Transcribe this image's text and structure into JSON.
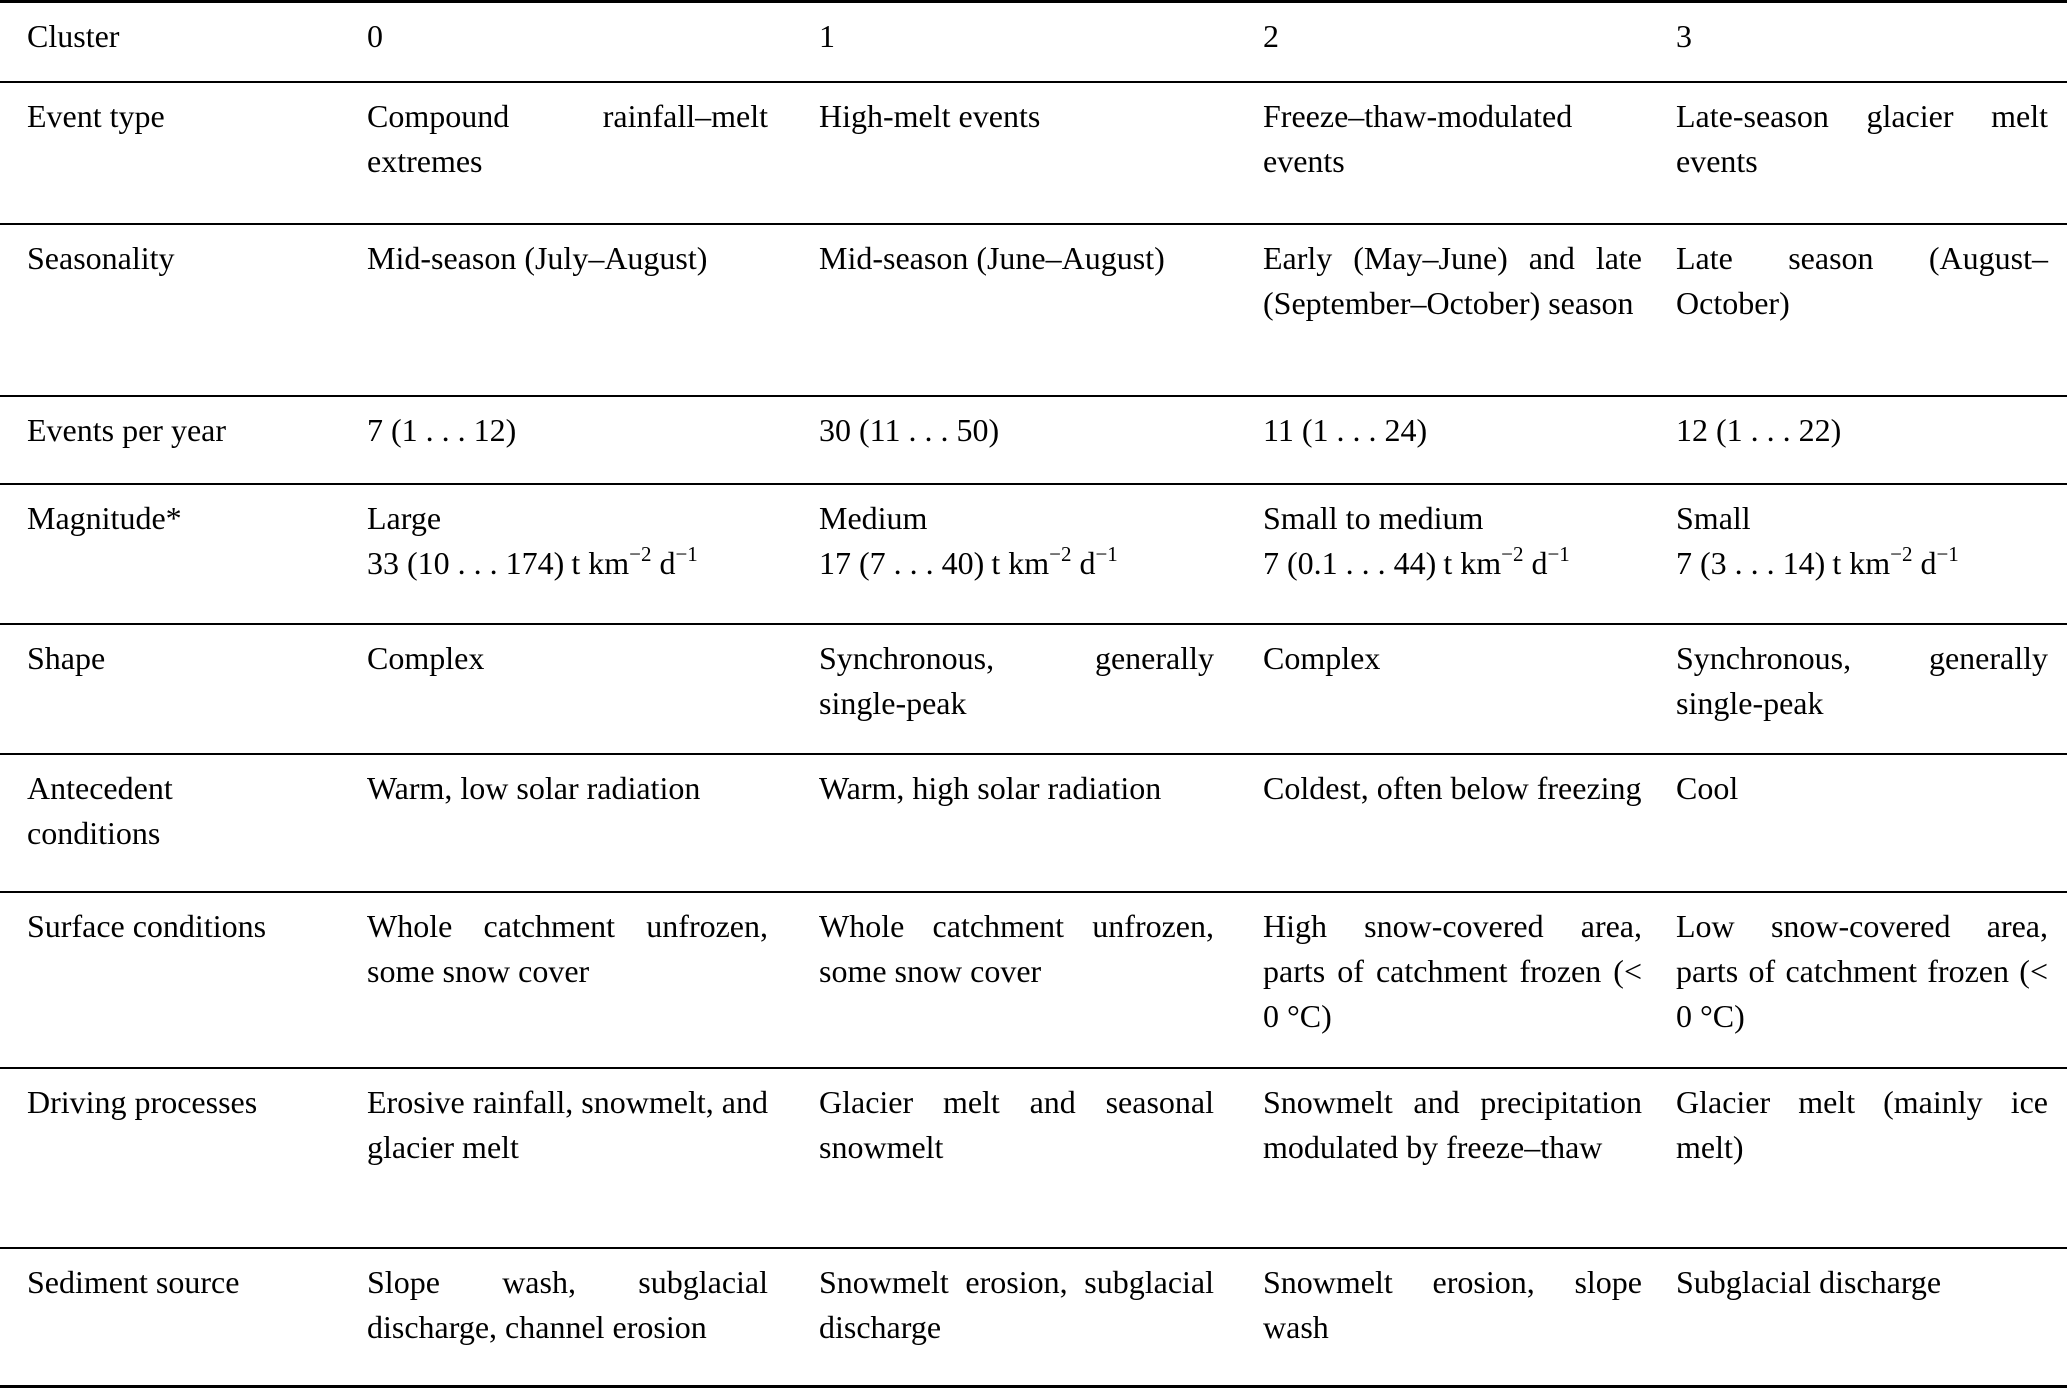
{
  "table": {
    "header": {
      "label": "Cluster",
      "columns": [
        "0",
        "1",
        "2",
        "3"
      ]
    },
    "rows": [
      {
        "label": "Event type",
        "cells": [
          "Compound rainfall–melt extremes",
          "High-melt events",
          "Freeze–thaw-modulated events",
          "Late-season glacier melt events"
        ]
      },
      {
        "label": "Seasonality",
        "cells": [
          "Mid-season (July–August)",
          "Mid-season (June–August)",
          "Early (May–June) and late (September–October) season",
          "Late season (August–October)"
        ]
      },
      {
        "label": "Events per year",
        "cells": [
          "7 (1 . . . 12)",
          "30 (11 . . . 50)",
          "11 (1 . . . 24)",
          "12 (1 . . . 22)"
        ]
      },
      {
        "label": "Magnitude*",
        "cells": [
          {
            "level": "Large",
            "rate": "33 (10 . . . 174)"
          },
          {
            "level": "Medium",
            "rate": "17 (7 . . . 40)"
          },
          {
            "level": "Small to medium",
            "rate": "7 (0.1 . . . 44)"
          },
          {
            "level": "Small",
            "rate": "7 (3 . . . 14)"
          }
        ],
        "unit": {
          "base1": "t km",
          "sup1": "−2",
          "base2": "d",
          "sup2": "−1"
        }
      },
      {
        "label": "Shape",
        "cells": [
          "Complex",
          "Synchronous, generally single-peak",
          "Complex",
          "Synchronous, generally single-peak"
        ]
      },
      {
        "label": "Antecedent conditions",
        "cells": [
          "Warm, low solar radiation",
          "Warm, high solar radiation",
          "Coldest, often below freezing",
          "Cool"
        ]
      },
      {
        "label": "Surface conditions",
        "cells": [
          "Whole catchment unfrozen, some snow cover",
          "Whole catchment unfrozen, some snow cover",
          "High snow-covered area, parts of catchment frozen (< 0 °C)",
          "Low snow-covered area, parts of catchment frozen (< 0 °C)"
        ]
      },
      {
        "label": "Driving processes",
        "cells": [
          "Erosive rainfall, snowmelt, and glacier melt",
          "Glacier melt and seasonal snowmelt",
          "Snowmelt and precipitation modulated by freeze–thaw",
          "Glacier melt (mainly ice melt)"
        ]
      },
      {
        "label": "Sediment source",
        "cells": [
          "Slope wash, subglacial discharge, channel erosion",
          "Snowmelt erosion, subglacial discharge",
          "Snowmelt erosion, slope wash",
          "Subglacial discharge"
        ]
      }
    ]
  }
}
